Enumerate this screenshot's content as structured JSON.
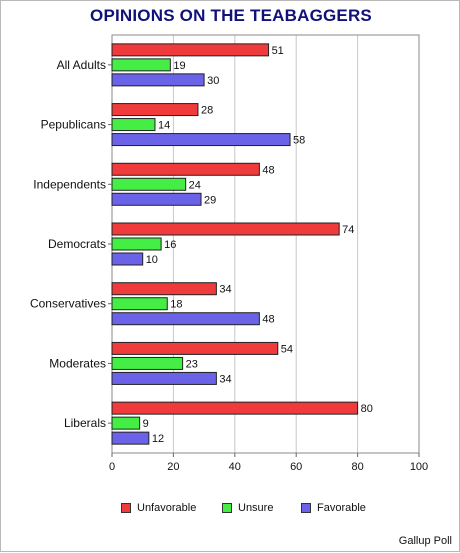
{
  "chart_data": {
    "type": "bar",
    "orientation": "horizontal",
    "title": "OPINIONS ON THE TEABAGGERS",
    "source": "Gallup Poll",
    "categories": [
      "All Adults",
      "Pepublicans",
      "Independents",
      "Democrats",
      "Conservatives",
      "Moderates",
      "Liberals"
    ],
    "series": [
      {
        "name": "Unfavorable",
        "color": "#ef3b3b",
        "values": [
          51,
          28,
          48,
          74,
          34,
          54,
          80
        ]
      },
      {
        "name": "Unsure",
        "color": "#44ee44",
        "values": [
          19,
          14,
          24,
          16,
          18,
          23,
          9
        ]
      },
      {
        "name": "Favorable",
        "color": "#6a63e8",
        "values": [
          30,
          58,
          29,
          10,
          48,
          34,
          12
        ]
      }
    ],
    "xlim": [
      0,
      100
    ],
    "xticks": [
      0,
      20,
      40,
      60,
      80,
      100
    ],
    "grid": true,
    "legend": "bottom"
  }
}
